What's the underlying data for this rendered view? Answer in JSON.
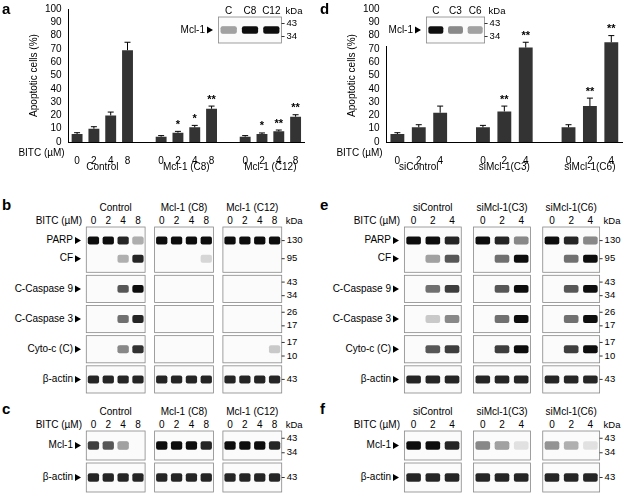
{
  "chart_data": [
    {
      "type": "bar",
      "panel_label": "a",
      "y_label": "Apoptotic cells (%)",
      "x_label": "BITC (µM)",
      "categories": [
        "0",
        "2",
        "4",
        "8",
        null,
        "0",
        "2",
        "4",
        "8",
        null,
        "0",
        "2",
        "4",
        "8"
      ],
      "values": [
        6,
        10,
        20,
        69,
        null,
        4,
        7,
        11,
        25,
        null,
        4,
        6,
        8,
        19
      ],
      "errors": [
        1,
        1.5,
        2.5,
        6,
        null,
        0.8,
        1,
        1.5,
        2,
        null,
        0.8,
        0.8,
        1,
        1.5
      ],
      "significance": [
        null,
        null,
        null,
        null,
        null,
        null,
        "*",
        "*",
        "**",
        null,
        null,
        "*",
        "**",
        "**"
      ],
      "groups": [
        {
          "label": "Control",
          "start": 0,
          "end": 3
        },
        {
          "label": "Mcl-1 (C8)",
          "start": 5,
          "end": 8
        },
        {
          "label": "Mcl-1 (C12)",
          "start": 10,
          "end": 13
        }
      ],
      "color": "#333333",
      "ylim": [
        0,
        100
      ],
      "yticks": [
        0,
        10,
        20,
        30,
        40,
        50,
        60,
        70,
        80,
        90,
        100
      ],
      "grid": false,
      "inset": {
        "kda_label": "kDa",
        "lanes": [
          "C",
          "C8",
          "C12"
        ],
        "rows": [
          {
            "labels": [
              "Mcl-1"
            ],
            "kda": [
              43,
              34
            ],
            "intensity": [
              [
                0.4,
                1,
                1
              ]
            ]
          }
        ]
      }
    },
    {
      "type": "bar",
      "panel_label": "d",
      "y_label": "Apoptotic cells (%)",
      "x_label": "BITC (µM)",
      "categories": [
        "0",
        "2",
        "4",
        null,
        "0",
        "2",
        "4",
        null,
        "0",
        "2",
        "4"
      ],
      "values": [
        6,
        11,
        22,
        null,
        11,
        23,
        71,
        null,
        11,
        27,
        75
      ],
      "errors": [
        1,
        2,
        5,
        null,
        1.5,
        4,
        4,
        null,
        2,
        6,
        5
      ],
      "significance": [
        null,
        null,
        null,
        null,
        null,
        "**",
        "**",
        null,
        null,
        "**",
        "**"
      ],
      "groups": [
        {
          "label": "siControl",
          "start": 0,
          "end": 2
        },
        {
          "label": "siMcl-1(C3)",
          "start": 4,
          "end": 6
        },
        {
          "label": "siMcl-1(C6)",
          "start": 8,
          "end": 10
        }
      ],
      "color": "#333333",
      "ylim": [
        0,
        100
      ],
      "yticks": [
        0,
        10,
        20,
        30,
        40,
        50,
        60,
        70,
        80,
        90,
        100
      ],
      "grid": false,
      "inset": {
        "kda_label": "kDa",
        "lanes": [
          "C",
          "C3",
          "C6"
        ],
        "rows": [
          {
            "labels": [
              "Mcl-1"
            ],
            "kda": [
              43,
              34
            ],
            "intensity": [
              [
                1,
                0.5,
                0.4
              ]
            ]
          }
        ]
      }
    }
  ],
  "blots": [
    {
      "panel_label": "b",
      "x_label": "BITC (µM)",
      "kda_label": "kDa",
      "lanes": [
        0,
        2,
        4,
        8,
        0,
        2,
        4,
        8,
        0,
        2,
        4,
        8
      ],
      "groups": [
        {
          "label": "Control",
          "start": 0,
          "end": 3
        },
        {
          "label": "Mcl-1 (C8)",
          "start": 4,
          "end": 7
        },
        {
          "label": "Mcl-1 (C12)",
          "start": 8,
          "end": 11
        }
      ],
      "rows": [
        {
          "labels": [
            "PARP",
            "CF"
          ],
          "kda": [
            130,
            95
          ],
          "intensity": [
            [
              1,
              1,
              0.9,
              0.35,
              1,
              1,
              1,
              1,
              1,
              1,
              1,
              1
            ],
            [
              0,
              0,
              0.3,
              0.9,
              0,
              0,
              0,
              0.15,
              0,
              0,
              0,
              0
            ]
          ]
        },
        {
          "labels": [
            "C-Caspase 9"
          ],
          "kda": [
            43,
            34
          ],
          "intensity": [
            [
              0,
              0,
              0.7,
              1,
              0,
              0,
              0,
              0,
              0,
              0,
              0,
              0
            ]
          ]
        },
        {
          "labels": [
            "C-Caspase 3"
          ],
          "kda": [
            26,
            17
          ],
          "intensity": [
            [
              0,
              0,
              0.6,
              0.9,
              0,
              0,
              0,
              0,
              0,
              0,
              0,
              0
            ]
          ]
        },
        {
          "labels": [
            "Cyto-c (C)"
          ],
          "kda": [
            17,
            10
          ],
          "intensity": [
            [
              0,
              0,
              0.5,
              0.85,
              0,
              0,
              0,
              0,
              0,
              0,
              0,
              0.2
            ]
          ]
        },
        {
          "labels": [
            "β-actin"
          ],
          "kda": [
            43
          ],
          "intensity": [
            [
              0.9,
              0.9,
              0.9,
              0.9,
              0.9,
              0.9,
              0.9,
              0.9,
              0.9,
              0.9,
              0.9,
              0.9
            ]
          ]
        }
      ]
    },
    {
      "panel_label": "c",
      "x_label": "BITC (µM)",
      "kda_label": "kDa",
      "lanes": [
        0,
        2,
        4,
        8,
        0,
        2,
        4,
        8,
        0,
        2,
        4,
        8
      ],
      "groups": [
        {
          "label": "Control",
          "start": 0,
          "end": 3
        },
        {
          "label": "Mcl-1 (C8)",
          "start": 4,
          "end": 7
        },
        {
          "label": "Mcl-1 (C12)",
          "start": 8,
          "end": 11
        }
      ],
      "rows": [
        {
          "labels": [
            "Mcl-1"
          ],
          "kda": [
            43,
            34
          ],
          "intensity": [
            [
              0.8,
              0.7,
              0.4,
              0,
              1,
              1,
              1,
              0.9,
              1,
              1,
              1,
              0.9
            ]
          ]
        },
        {
          "labels": [
            "β-actin"
          ],
          "kda": [
            43
          ],
          "intensity": [
            [
              0.9,
              0.9,
              0.9,
              0.9,
              0.9,
              0.9,
              0.9,
              0.9,
              0.9,
              0.9,
              0.9,
              0.9
            ]
          ]
        }
      ]
    },
    {
      "panel_label": "e",
      "x_label": "BITC (µM)",
      "kda_label": "kDa",
      "lanes": [
        0,
        2,
        4,
        0,
        2,
        4,
        0,
        2,
        4
      ],
      "groups": [
        {
          "label": "siControl",
          "start": 0,
          "end": 2
        },
        {
          "label": "siMcl-1(C3)",
          "start": 3,
          "end": 5
        },
        {
          "label": "siMcl-1(C6)",
          "start": 6,
          "end": 8
        }
      ],
      "rows": [
        {
          "labels": [
            "PARP",
            "CF"
          ],
          "kda": [
            130,
            95
          ],
          "intensity": [
            [
              1,
              1,
              0.9,
              1,
              0.9,
              0.5,
              1,
              0.9,
              0.5
            ],
            [
              0,
              0.4,
              0.7,
              0,
              0.6,
              1,
              0,
              0.6,
              1
            ]
          ]
        },
        {
          "labels": [
            "C-Caspase 9"
          ],
          "kda": [
            43,
            34
          ],
          "intensity": [
            [
              0,
              0.6,
              0.8,
              0,
              0.7,
              1,
              0,
              0.7,
              1
            ]
          ]
        },
        {
          "labels": [
            "C-Caspase 3"
          ],
          "kda": [
            26,
            17
          ],
          "intensity": [
            [
              0,
              0.2,
              0.5,
              0,
              0.6,
              1,
              0,
              0.6,
              1
            ]
          ]
        },
        {
          "labels": [
            "Cyto-c (C)"
          ],
          "kda": [
            17,
            10
          ],
          "intensity": [
            [
              0,
              0.7,
              0.8,
              0,
              0.8,
              1,
              0,
              0.8,
              1
            ]
          ]
        },
        {
          "labels": [
            "β-actin"
          ],
          "kda": [
            43
          ],
          "intensity": [
            [
              0.9,
              0.9,
              0.9,
              0.9,
              0.9,
              0.9,
              0.9,
              0.9,
              0.9
            ]
          ]
        }
      ]
    },
    {
      "panel_label": "f",
      "x_label": "BITC (µM)",
      "kda_label": "kDa",
      "lanes": [
        0,
        2,
        4,
        0,
        2,
        4,
        0,
        2,
        4
      ],
      "groups": [
        {
          "label": "siControl",
          "start": 0,
          "end": 2
        },
        {
          "label": "siMcl-1(C3)",
          "start": 3,
          "end": 5
        },
        {
          "label": "siMcl-1(C6)",
          "start": 6,
          "end": 8
        }
      ],
      "rows": [
        {
          "labels": [
            "Mcl-1"
          ],
          "kda": [
            43,
            34
          ],
          "intensity": [
            [
              1,
              1,
              0.9,
              0.5,
              0.4,
              0.1,
              0.45,
              0.3,
              0.1
            ]
          ]
        },
        {
          "labels": [
            "β-actin"
          ],
          "kda": [
            43
          ],
          "intensity": [
            [
              0.9,
              0.9,
              0.9,
              0.9,
              0.9,
              0.9,
              0.9,
              0.9,
              0.9
            ]
          ]
        }
      ]
    }
  ]
}
